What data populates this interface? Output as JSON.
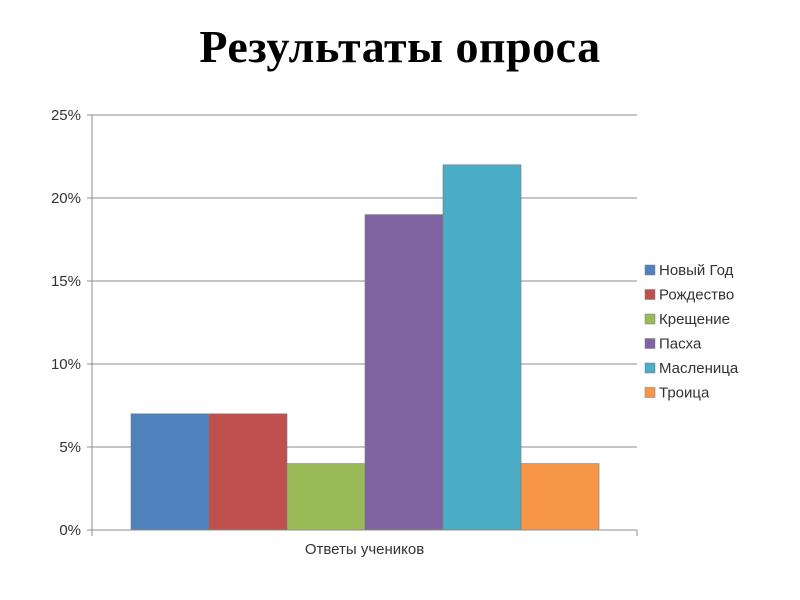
{
  "slide": {
    "title": "Результаты опроса"
  },
  "chart_data": {
    "type": "bar",
    "categories": [
      "Ответы учеников"
    ],
    "series": [
      {
        "name": "Новый Год",
        "values": [
          7
        ],
        "color": "#4F81BD"
      },
      {
        "name": "Рождество",
        "values": [
          7
        ],
        "color": "#C0504D"
      },
      {
        "name": "Крещение",
        "values": [
          4
        ],
        "color": "#9BBB59"
      },
      {
        "name": "Пасха",
        "values": [
          19
        ],
        "color": "#8064A2"
      },
      {
        "name": "Масленица",
        "values": [
          22
        ],
        "color": "#4BACC6"
      },
      {
        "name": "Троица",
        "values": [
          4
        ],
        "color": "#F79646"
      }
    ],
    "yticks": [
      "0%",
      "5%",
      "10%",
      "15%",
      "20%",
      "25%"
    ],
    "ylim": [
      0,
      25
    ],
    "grid": true,
    "legend_position": "right",
    "title": "",
    "xlabel": "",
    "ylabel": ""
  }
}
